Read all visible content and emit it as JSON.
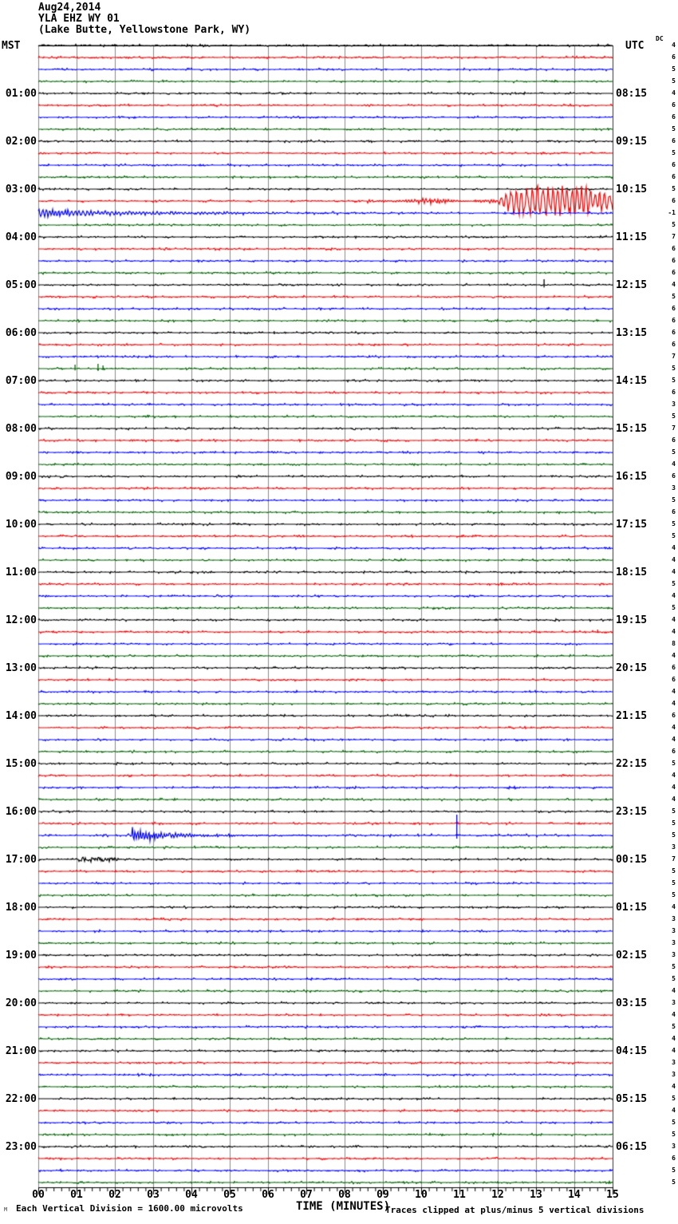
{
  "header": {
    "date": "Aug24,2014",
    "station": "YLA EHZ WY 01",
    "location": "(Lake Butte, Yellowstone Park, WY)",
    "left_tz": "MST",
    "right_tz": "UTC",
    "offset_col": "DC"
  },
  "footer": {
    "scale_note": "Each Vertical Division = 1600.00 microvolts",
    "axis_title": "TIME (MINUTES)",
    "clip_note": "Traces clipped at plus/minus 5 vertical divisions",
    "watermark": "M"
  },
  "colors": {
    "trace_cycle": [
      "#000000",
      "#ff0000",
      "#0000ff",
      "#006400"
    ],
    "grid": "#8a8a8a",
    "axis": "#000000",
    "background": "#ffffff"
  },
  "chart_data": {
    "type": "line",
    "subtype": "helicorder_seismogram",
    "title": "YLA EHZ WY 01 (Lake Butte, Yellowstone Park, WY) Aug24,2014",
    "xlabel": "TIME (MINUTES)",
    "x_range": [
      0,
      15
    ],
    "x_tick_labels": [
      "00",
      "01",
      "02",
      "03",
      "04",
      "05",
      "06",
      "07",
      "08",
      "09",
      "10",
      "11",
      "12",
      "13",
      "14",
      "15"
    ],
    "minor_ticks_per_minute": 5,
    "grid_interval_min": 1,
    "rows": 96,
    "minutes_per_row": 15,
    "row_color_cycle": [
      "black",
      "red",
      "blue",
      "green"
    ],
    "left_time_labels_mst": [
      "01:00",
      "02:00",
      "03:00",
      "04:00",
      "05:00",
      "06:00",
      "07:00",
      "08:00",
      "09:00",
      "10:00",
      "11:00",
      "12:00",
      "13:00",
      "14:00",
      "15:00",
      "16:00",
      "17:00",
      "18:00",
      "19:00",
      "20:00",
      "21:00",
      "22:00",
      "23:00"
    ],
    "right_time_labels_utc": [
      "08:15",
      "09:15",
      "10:15",
      "11:15",
      "12:15",
      "13:15",
      "14:15",
      "15:15",
      "16:15",
      "17:15",
      "18:15",
      "19:15",
      "20:15",
      "21:15",
      "22:15",
      "23:15",
      "00:15",
      "01:15",
      "02:15",
      "03:15",
      "04:15",
      "05:15",
      "06:15"
    ],
    "dc_offsets": [
      4,
      6,
      5,
      5,
      4,
      6,
      6,
      5,
      6,
      5,
      6,
      6,
      5,
      6,
      -1,
      5,
      7,
      6,
      6,
      6,
      4,
      5,
      6,
      6,
      6,
      6,
      7,
      5,
      5,
      6,
      3,
      5,
      7,
      6,
      5,
      4,
      6,
      3,
      5,
      6,
      5,
      5,
      4,
      4,
      4,
      5,
      4,
      5,
      4,
      4,
      8,
      4,
      6,
      6,
      4,
      4,
      6,
      4,
      4,
      6,
      5,
      4,
      4,
      4,
      5,
      5,
      5,
      3,
      7,
      5,
      5,
      5,
      4,
      3,
      3,
      3,
      3,
      5,
      5,
      4,
      3,
      4,
      5,
      4,
      4,
      3,
      3,
      4,
      5,
      4,
      5,
      5,
      3,
      6,
      5,
      5
    ],
    "events": [
      {
        "trace": 13,
        "row_time_mst": "03:15",
        "type": "tremor",
        "start_min": 8.6,
        "end_min": 11.95,
        "amplitude": 4
      },
      {
        "trace": 13,
        "row_time_mst": "03:15",
        "type": "quake",
        "start_min": 11.95,
        "end_min": 15,
        "amplitude": 22
      },
      {
        "trace": 14,
        "row_time_mst": "03:30",
        "type": "coda",
        "start_min": 0,
        "end_min": 6.5,
        "amplitude": 6
      },
      {
        "trace": 20,
        "row_time_mst": "05:00",
        "type": "spike",
        "at_min": 13.2,
        "amplitude": 7
      },
      {
        "trace": 24,
        "row_time_mst": "06:00",
        "type": "spike",
        "at_min": 5.1,
        "amplitude": 2
      },
      {
        "trace": 24,
        "row_time_mst": "06:00",
        "type": "spike",
        "at_min": 6.15,
        "amplitude": 2
      },
      {
        "trace": 27,
        "row_time_mst": "06:45",
        "type": "spike",
        "at_min": 0.95,
        "amplitude": 5
      },
      {
        "trace": 27,
        "row_time_mst": "06:45",
        "type": "spike",
        "at_min": 1.55,
        "amplitude": 6
      },
      {
        "trace": 27,
        "row_time_mst": "06:45",
        "type": "spike",
        "at_min": 1.68,
        "amplitude": 4
      },
      {
        "trace": 49,
        "row_time_mst": "12:15",
        "type": "spike",
        "at_min": 14.6,
        "amplitude": 3
      },
      {
        "trace": 66,
        "row_time_mst": "16:30",
        "type": "burst",
        "start_min": 2.45,
        "end_min": 6.2,
        "amplitude": 9
      },
      {
        "trace": 66,
        "row_time_mst": "16:30",
        "type": "spike",
        "at_min": 10.92,
        "amplitude": 26
      },
      {
        "trace": 68,
        "row_time_mst": "17:00",
        "type": "fuzz",
        "start_min": 1.05,
        "end_min": 2.1,
        "amplitude": 2.5
      },
      {
        "trace": 76,
        "row_time_mst": "19:00",
        "type": "spike",
        "at_min": 11.45,
        "amplitude": 2
      }
    ]
  }
}
